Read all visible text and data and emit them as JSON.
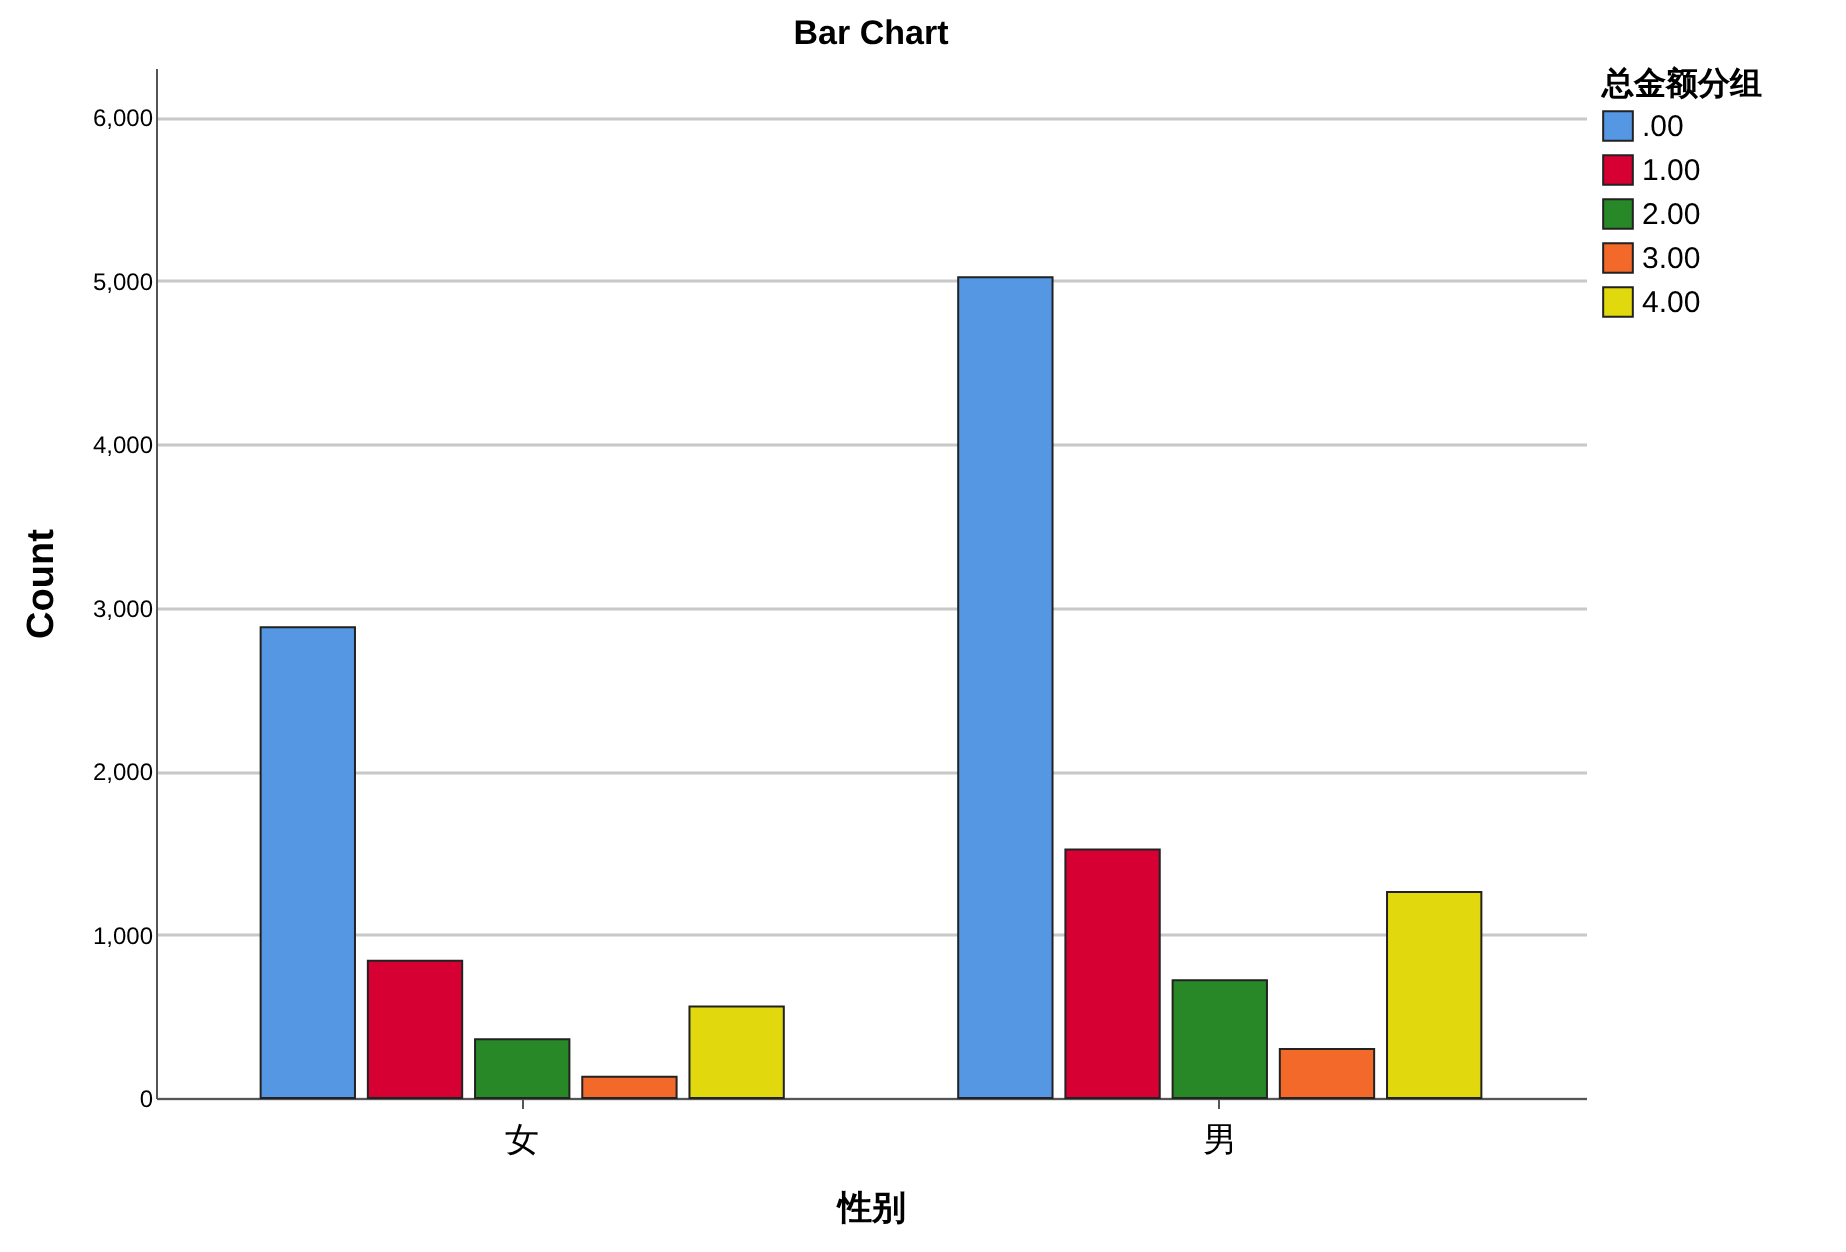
{
  "chart_data": {
    "type": "bar",
    "title": "Bar Chart",
    "xlabel": "性别",
    "ylabel": "Count",
    "legend_title": "总金额分组",
    "categories": [
      "女",
      "男"
    ],
    "series": [
      {
        "name": ".00",
        "color": "#5597e3",
        "values": [
          2880,
          5020
        ]
      },
      {
        "name": "1.00",
        "color": "#d60032",
        "values": [
          840,
          1520
        ]
      },
      {
        "name": "2.00",
        "color": "#288828",
        "values": [
          360,
          720
        ]
      },
      {
        "name": "3.00",
        "color": "#f2692a",
        "values": [
          130,
          300
        ]
      },
      {
        "name": "4.00",
        "color": "#e2d80e",
        "values": [
          560,
          1260
        ]
      }
    ],
    "ylim": [
      0,
      6300
    ],
    "yticks": [
      0,
      {
        "value": 1000,
        "label": "1,000"
      },
      {
        "value": 2000,
        "label": "2,000"
      },
      {
        "value": 3000,
        "label": "3,000"
      },
      {
        "value": 4000,
        "label": "4,000"
      },
      {
        "value": 5000,
        "label": "5,000"
      },
      {
        "value": 6000,
        "label": "6,000"
      }
    ],
    "grid": "y",
    "legend": "top right"
  }
}
